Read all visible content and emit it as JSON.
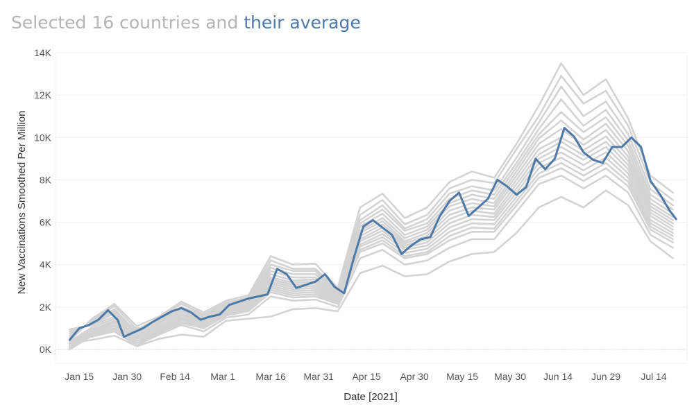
{
  "title": {
    "part1": "Selected 16 countries and",
    "part2": "their average",
    "part2_color": "#4e79a7"
  },
  "chart_data": {
    "type": "line",
    "xlabel": "Date [2021]",
    "ylabel": "New Vaccinations Smoothed Per Million",
    "x_range": [
      "2021-01-08",
      "2021-07-24"
    ],
    "ylim": [
      0,
      14000
    ],
    "yticks": [
      0,
      2000,
      4000,
      6000,
      8000,
      10000,
      12000,
      14000
    ],
    "ytick_labels": [
      "0K",
      "2K",
      "4K",
      "6K",
      "8K",
      "10K",
      "12K",
      "14K"
    ],
    "xticks": [
      "2021-01-15",
      "2021-01-30",
      "2021-02-14",
      "2021-03-01",
      "2021-03-16",
      "2021-03-31",
      "2021-04-15",
      "2021-04-30",
      "2021-05-15",
      "2021-05-30",
      "2021-06-14",
      "2021-06-29",
      "2021-07-14"
    ],
    "xtick_labels": [
      "Jan 15",
      "Jan 30",
      "Feb 14",
      "Mar 1",
      "Mar 16",
      "Mar 31",
      "Apr 15",
      "Apr 30",
      "May 15",
      "May 30",
      "Jun 14",
      "Jun 29",
      "Jul 14"
    ],
    "grid": true,
    "colors": {
      "countries": "#d3d3d3",
      "average": "#4e79a7"
    },
    "average": {
      "x": [
        "2021-01-12",
        "2021-01-15",
        "2021-01-18",
        "2021-01-21",
        "2021-01-24",
        "2021-01-27",
        "2021-01-29",
        "2021-02-01",
        "2021-02-04",
        "2021-02-07",
        "2021-02-10",
        "2021-02-13",
        "2021-02-16",
        "2021-02-19",
        "2021-02-22",
        "2021-02-25",
        "2021-02-28",
        "2021-03-03",
        "2021-03-06",
        "2021-03-09",
        "2021-03-12",
        "2021-03-15",
        "2021-03-18",
        "2021-03-21",
        "2021-03-24",
        "2021-03-27",
        "2021-03-30",
        "2021-04-02",
        "2021-04-05",
        "2021-04-08",
        "2021-04-11",
        "2021-04-14",
        "2021-04-17",
        "2021-04-20",
        "2021-04-23",
        "2021-04-26",
        "2021-04-29",
        "2021-05-02",
        "2021-05-05",
        "2021-05-08",
        "2021-05-11",
        "2021-05-14",
        "2021-05-17",
        "2021-05-20",
        "2021-05-23",
        "2021-05-26",
        "2021-05-29",
        "2021-06-01",
        "2021-06-04",
        "2021-06-07",
        "2021-06-10",
        "2021-06-13",
        "2021-06-16",
        "2021-06-19",
        "2021-06-22",
        "2021-06-25",
        "2021-06-28",
        "2021-07-01",
        "2021-07-04",
        "2021-07-07",
        "2021-07-10",
        "2021-07-13",
        "2021-07-16",
        "2021-07-19",
        "2021-07-21"
      ],
      "y": [
        450,
        1000,
        1150,
        1400,
        1850,
        1400,
        600,
        800,
        1000,
        1300,
        1550,
        1800,
        1950,
        1750,
        1400,
        1550,
        1650,
        2100,
        2250,
        2400,
        2500,
        2600,
        3800,
        3550,
        2900,
        3050,
        3200,
        3550,
        2950,
        2650,
        4300,
        5800,
        6100,
        5750,
        5400,
        4500,
        4900,
        5200,
        5300,
        6300,
        7000,
        7400,
        6300,
        6700,
        7100,
        8000,
        7700,
        7300,
        7650,
        9000,
        8500,
        9000,
        10450,
        10050,
        9300,
        8950,
        8800,
        9550,
        9550,
        10000,
        9550,
        7950,
        7300,
        6550,
        6150
      ]
    },
    "countries": {
      "x": [
        "2021-01-12",
        "2021-01-19",
        "2021-01-26",
        "2021-02-02",
        "2021-02-09",
        "2021-02-16",
        "2021-02-23",
        "2021-03-02",
        "2021-03-09",
        "2021-03-16",
        "2021-03-23",
        "2021-03-30",
        "2021-04-06",
        "2021-04-13",
        "2021-04-20",
        "2021-04-27",
        "2021-05-04",
        "2021-05-11",
        "2021-05-18",
        "2021-05-25",
        "2021-06-01",
        "2021-06-08",
        "2021-06-15",
        "2021-06-22",
        "2021-06-29",
        "2021-07-06",
        "2021-07-13",
        "2021-07-20"
      ],
      "series": [
        {
          "y": [
            400,
            1450,
            2150,
            1100,
            1550,
            2250,
            1750,
            2300,
            2550,
            4400,
            4000,
            4050,
            2900,
            6700,
            7350,
            6200,
            6700,
            7900,
            8400,
            8100,
            9700,
            11500,
            13500,
            12000,
            12750,
            10900,
            8200,
            7400
          ]
        },
        {
          "y": [
            550,
            1350,
            2050,
            950,
            1450,
            2150,
            1650,
            2200,
            2450,
            4200,
            3800,
            3800,
            2800,
            6350,
            7050,
            5900,
            6350,
            7600,
            8000,
            7850,
            9450,
            11000,
            12900,
            11600,
            12200,
            10550,
            7850,
            7050
          ]
        },
        {
          "y": [
            650,
            1300,
            1900,
            800,
            1400,
            2000,
            1600,
            2150,
            2350,
            4000,
            3700,
            3700,
            2700,
            6100,
            6800,
            5700,
            6150,
            7350,
            7700,
            7500,
            9050,
            10700,
            12400,
            11000,
            11700,
            10150,
            7550,
            6800
          ]
        },
        {
          "y": [
            750,
            1250,
            1800,
            700,
            1300,
            1950,
            1500,
            2100,
            2300,
            3850,
            3550,
            3550,
            2650,
            5950,
            6600,
            5600,
            5950,
            7100,
            7500,
            7300,
            8800,
            10400,
            11800,
            10550,
            11300,
            9850,
            7300,
            6600
          ]
        },
        {
          "y": [
            850,
            1200,
            1700,
            600,
            1250,
            1850,
            1450,
            2050,
            2250,
            3700,
            3400,
            3400,
            2600,
            5800,
            6400,
            5400,
            5800,
            6900,
            7300,
            7100,
            8600,
            10150,
            11200,
            10250,
            10950,
            9600,
            7100,
            6400
          ]
        },
        {
          "y": [
            950,
            1150,
            1550,
            550,
            1200,
            1800,
            1400,
            2000,
            2200,
            3550,
            3250,
            3300,
            2550,
            5600,
            6200,
            5250,
            5650,
            6750,
            7100,
            6900,
            8400,
            9950,
            10800,
            9900,
            10650,
            9350,
            6900,
            6250
          ]
        },
        {
          "y": [
            350,
            1050,
            1450,
            1000,
            1100,
            1700,
            1350,
            1950,
            2150,
            3400,
            3150,
            3200,
            2500,
            5500,
            6050,
            5100,
            5500,
            6550,
            6900,
            6750,
            8200,
            9700,
            10400,
            9650,
            10350,
            9100,
            6750,
            6100
          ]
        },
        {
          "y": [
            300,
            950,
            1350,
            900,
            1050,
            1650,
            1300,
            1900,
            2100,
            3300,
            3050,
            3100,
            2450,
            5350,
            5900,
            5000,
            5350,
            6350,
            6700,
            6600,
            8000,
            9450,
            10000,
            9400,
            10050,
            8900,
            6600,
            5950
          ]
        },
        {
          "y": [
            250,
            900,
            1300,
            850,
            1000,
            1600,
            1250,
            1850,
            2050,
            3200,
            2950,
            3000,
            2400,
            5200,
            5750,
            4900,
            5200,
            6150,
            6550,
            6400,
            7800,
            9200,
            9800,
            9150,
            9800,
            8700,
            6450,
            5800
          ]
        },
        {
          "y": [
            200,
            850,
            1250,
            700,
            950,
            1500,
            1200,
            1800,
            2000,
            3100,
            2850,
            2900,
            2350,
            5100,
            5600,
            4800,
            5050,
            5950,
            6350,
            6250,
            7600,
            9000,
            9550,
            8950,
            9550,
            8500,
            6300,
            5650
          ]
        },
        {
          "y": [
            150,
            800,
            1150,
            600,
            900,
            1450,
            1150,
            1750,
            1950,
            3000,
            2750,
            2800,
            2300,
            4950,
            5450,
            4700,
            4900,
            5750,
            6150,
            6100,
            7400,
            8800,
            9300,
            8700,
            9300,
            8300,
            6100,
            5500
          ]
        },
        {
          "y": [
            100,
            750,
            1100,
            500,
            850,
            1400,
            1100,
            1700,
            1900,
            2900,
            2650,
            2700,
            2250,
            4850,
            5300,
            4550,
            4750,
            5550,
            5950,
            5900,
            7200,
            8550,
            9050,
            8450,
            9050,
            8100,
            5950,
            5350
          ]
        },
        {
          "y": [
            50,
            700,
            1000,
            400,
            800,
            1300,
            1050,
            1650,
            1850,
            2800,
            2550,
            2600,
            2200,
            4700,
            5150,
            4400,
            4600,
            5350,
            5750,
            5700,
            7000,
            8300,
            8800,
            8200,
            8800,
            7900,
            5800,
            5200
          ]
        },
        {
          "y": [
            0,
            650,
            950,
            300,
            750,
            1250,
            1000,
            1600,
            1800,
            2700,
            2450,
            2500,
            2150,
            4600,
            5000,
            4300,
            4500,
            5150,
            5550,
            5550,
            6800,
            8100,
            8550,
            7950,
            8550,
            7700,
            5650,
            5050
          ]
        },
        {
          "y": [
            500,
            600,
            850,
            200,
            700,
            1150,
            850,
            1500,
            1650,
            2500,
            2300,
            2350,
            2000,
            4300,
            4700,
            4000,
            4200,
            4800,
            5200,
            5200,
            6500,
            7800,
            8200,
            7600,
            8200,
            7400,
            5400,
            4800
          ]
        },
        {
          "y": [
            300,
            450,
            650,
            150,
            500,
            700,
            600,
            1350,
            1450,
            1550,
            1900,
            1950,
            1800,
            3600,
            3950,
            3450,
            3550,
            4150,
            4500,
            4600,
            5500,
            6700,
            7200,
            6700,
            7500,
            6800,
            5100,
            4300
          ]
        }
      ]
    }
  }
}
